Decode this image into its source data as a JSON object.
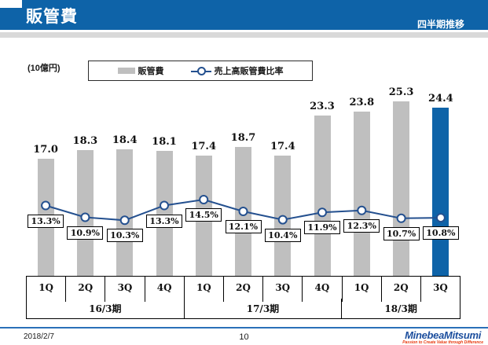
{
  "header": {
    "title": "販管費",
    "subtitle": "四半期推移"
  },
  "colors": {
    "header_blue": "#0e63a8",
    "bar_gray": "#bfbfbf",
    "bar_highlight_blue": "#0e63a8",
    "line_blue": "#24508f",
    "footer_line_blue": "#2a70b8",
    "logo_blue": "#1d4f9e",
    "logo_red": "#e8380d"
  },
  "chart_data": {
    "type": "bar",
    "unit_label": "(10億円)",
    "categories": [
      "1Q",
      "2Q",
      "3Q",
      "4Q",
      "1Q",
      "2Q",
      "3Q",
      "4Q",
      "1Q",
      "2Q",
      "3Q"
    ],
    "groups": [
      {
        "label": "16/3期",
        "span": 4
      },
      {
        "label": "17/3期",
        "span": 4
      },
      {
        "label": "18/3期",
        "span": 3
      }
    ],
    "bars": {
      "name": "販管費",
      "values": [
        17.0,
        18.3,
        18.4,
        18.1,
        17.4,
        18.7,
        17.4,
        23.3,
        23.8,
        25.3,
        24.4
      ],
      "highlight_index": 10
    },
    "line": {
      "name": "売上高販管費比率",
      "values_pct": [
        13.3,
        10.9,
        10.3,
        13.3,
        14.5,
        12.1,
        10.4,
        11.9,
        12.3,
        10.7,
        10.8
      ]
    },
    "legend_position": "top",
    "grid": false
  },
  "footer": {
    "date": "2018/2/7",
    "page": "10",
    "logo": "MinebeaMitsumi",
    "tagline": "Passion to Create Value through Difference"
  }
}
